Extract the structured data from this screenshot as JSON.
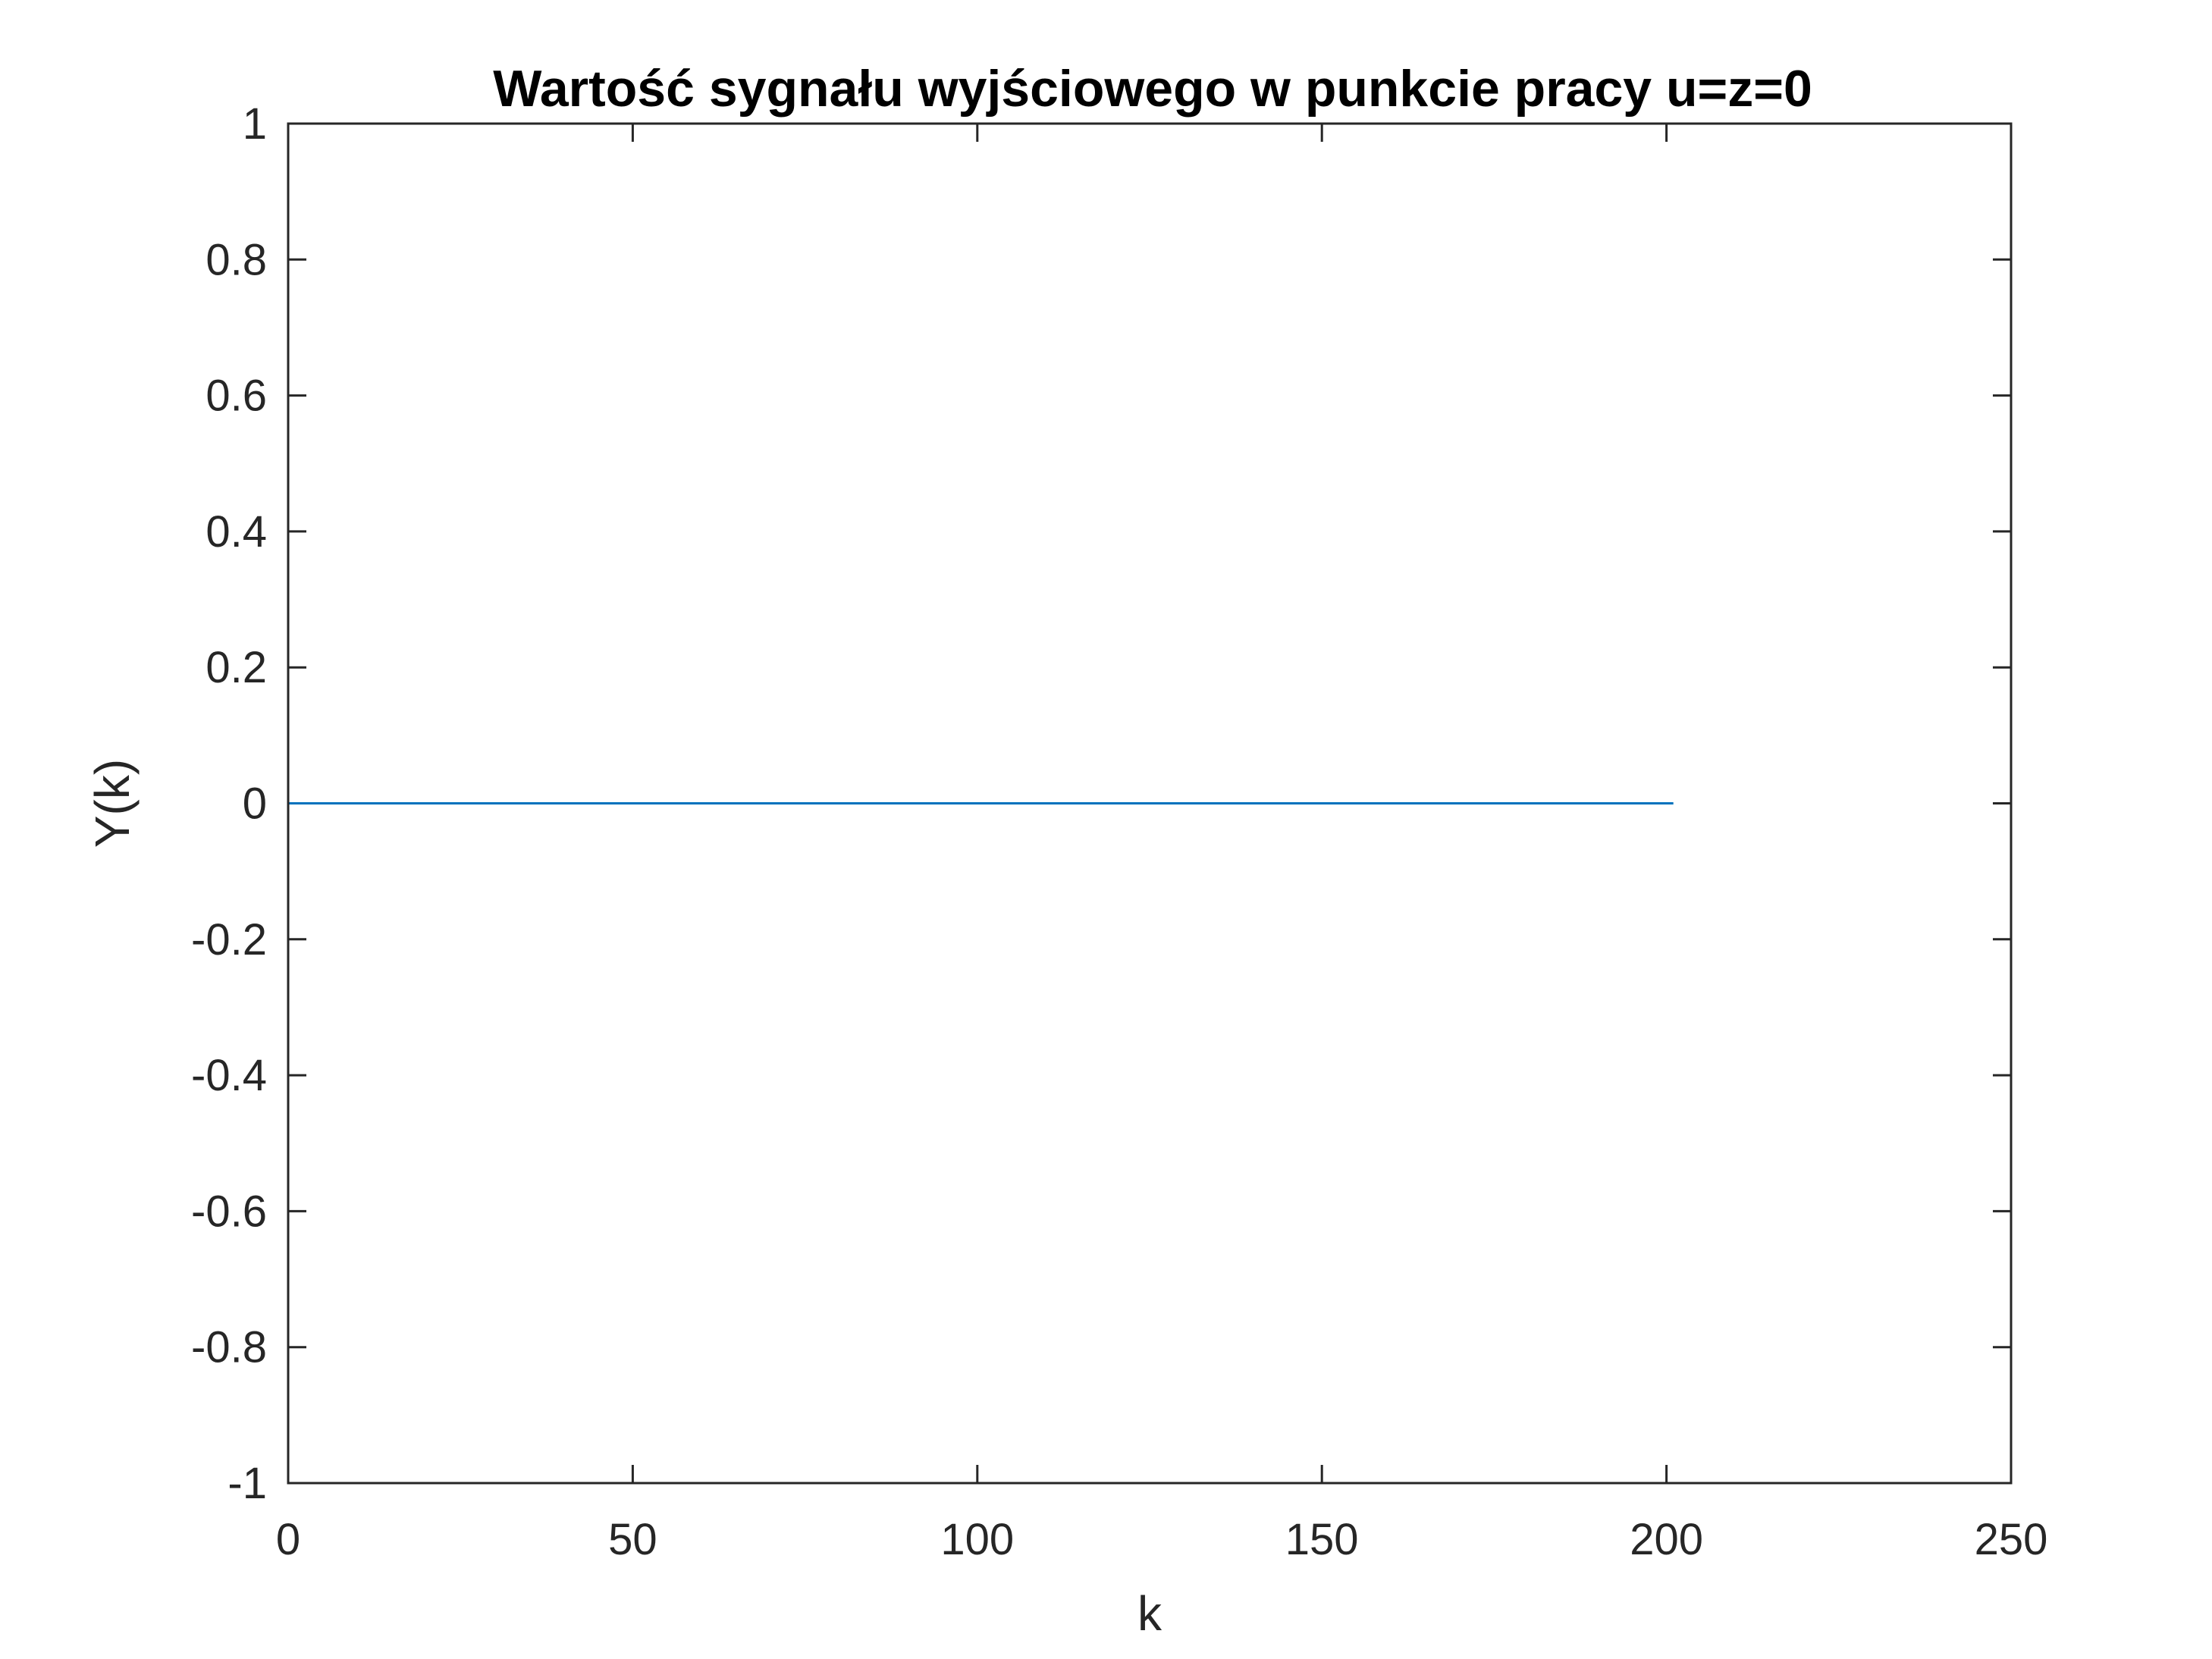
{
  "chart_data": {
    "type": "line",
    "title": "Wartość sygnału wyjściowego w punkcie pracy u=z=0",
    "xlabel": "k",
    "ylabel": "Y(k)",
    "xlim": [
      0,
      250
    ],
    "ylim": [
      -1,
      1
    ],
    "xticks": [
      0,
      50,
      100,
      150,
      200,
      250
    ],
    "yticks": [
      -1,
      -0.8,
      -0.6,
      -0.4,
      -0.2,
      0,
      0.2,
      0.4,
      0.6,
      0.8,
      1
    ],
    "xtick_labels": [
      "0",
      "50",
      "100",
      "150",
      "200",
      "250"
    ],
    "ytick_labels": [
      "-1",
      "-0.8",
      "-0.6",
      "-0.4",
      "-0.2",
      "0",
      "0.2",
      "0.4",
      "0.6",
      "0.8",
      "1"
    ],
    "grid": false,
    "series": [
      {
        "color": "#0072BD",
        "x": [
          0,
          201
        ],
        "y": [
          0,
          0
        ]
      }
    ]
  }
}
